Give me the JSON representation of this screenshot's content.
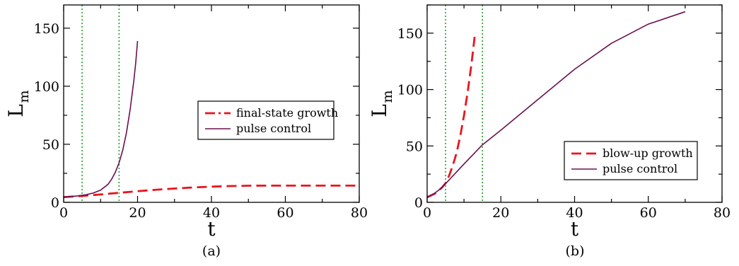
{
  "figure": {
    "captions": [
      "(a)",
      "(b)"
    ]
  },
  "chart_data": [
    {
      "type": "line",
      "panel": "(a)",
      "xlabel": "t",
      "ylabel": "L",
      "ylabel_sub": "m",
      "xlim": [
        0,
        80
      ],
      "ylim": [
        0,
        170
      ],
      "xticks": [
        0,
        20,
        40,
        60,
        80
      ],
      "yticks": [
        0,
        50,
        100,
        150
      ],
      "grid": false,
      "legend_position": "center-right",
      "vlines": [
        {
          "x": 5,
          "color": "#22a02a",
          "style": "dotted"
        },
        {
          "x": 15,
          "color": "#22a02a",
          "style": "dotted"
        }
      ],
      "series": [
        {
          "name": "final-state growth",
          "color": "#e8141e",
          "style": "dashed",
          "legend_style": "dashdot",
          "x": [
            0,
            5,
            10,
            15,
            20,
            25,
            30,
            35,
            40,
            45,
            50,
            55,
            60,
            65,
            70,
            75,
            80
          ],
          "y": [
            4.5,
            5.5,
            6.8,
            8.2,
            9.6,
            10.8,
            11.9,
            12.8,
            13.5,
            14.0,
            14.3,
            14.4,
            14.4,
            14.4,
            14.4,
            14.4,
            14.4
          ]
        },
        {
          "name": "pulse control",
          "color": "#6b1050",
          "style": "solid",
          "x": [
            0,
            2,
            4,
            6,
            8,
            10,
            12,
            13,
            14,
            15,
            16,
            17,
            18,
            19,
            19.5,
            20
          ],
          "y": [
            4.5,
            5.0,
            5.6,
            6.5,
            8.0,
            10.5,
            15.5,
            20,
            26,
            34,
            45,
            60,
            80,
            105,
            120,
            139
          ]
        }
      ]
    },
    {
      "type": "line",
      "panel": "(b)",
      "xlabel": "t",
      "ylabel": "L",
      "ylabel_sub": "m",
      "xlim": [
        0,
        80
      ],
      "ylim": [
        0,
        175
      ],
      "xticks": [
        0,
        20,
        40,
        60,
        80
      ],
      "yticks": [
        0,
        50,
        100,
        150
      ],
      "grid": false,
      "legend_position": "lower-right",
      "vlines": [
        {
          "x": 5,
          "color": "#22a02a",
          "style": "dotted"
        },
        {
          "x": 15,
          "color": "#22a02a",
          "style": "dotted"
        }
      ],
      "series": [
        {
          "name": "blow-up growth",
          "color": "#e8141e",
          "style": "dashed",
          "legend_style": "dashed",
          "x": [
            0,
            2,
            4,
            5,
            6,
            7,
            8,
            9,
            10,
            11,
            12,
            13
          ],
          "y": [
            4.5,
            7.5,
            13,
            17,
            24,
            33,
            44,
            59,
            77,
            98,
            122,
            150
          ]
        },
        {
          "name": "pulse control",
          "color": "#6b1050",
          "style": "solid",
          "x": [
            0,
            2,
            4,
            6,
            8,
            10,
            15,
            20,
            30,
            40,
            50,
            60,
            70
          ],
          "y": [
            4.5,
            8,
            13,
            20,
            27,
            34,
            51,
            64,
            91,
            118,
            141,
            158,
            169
          ]
        }
      ]
    }
  ]
}
